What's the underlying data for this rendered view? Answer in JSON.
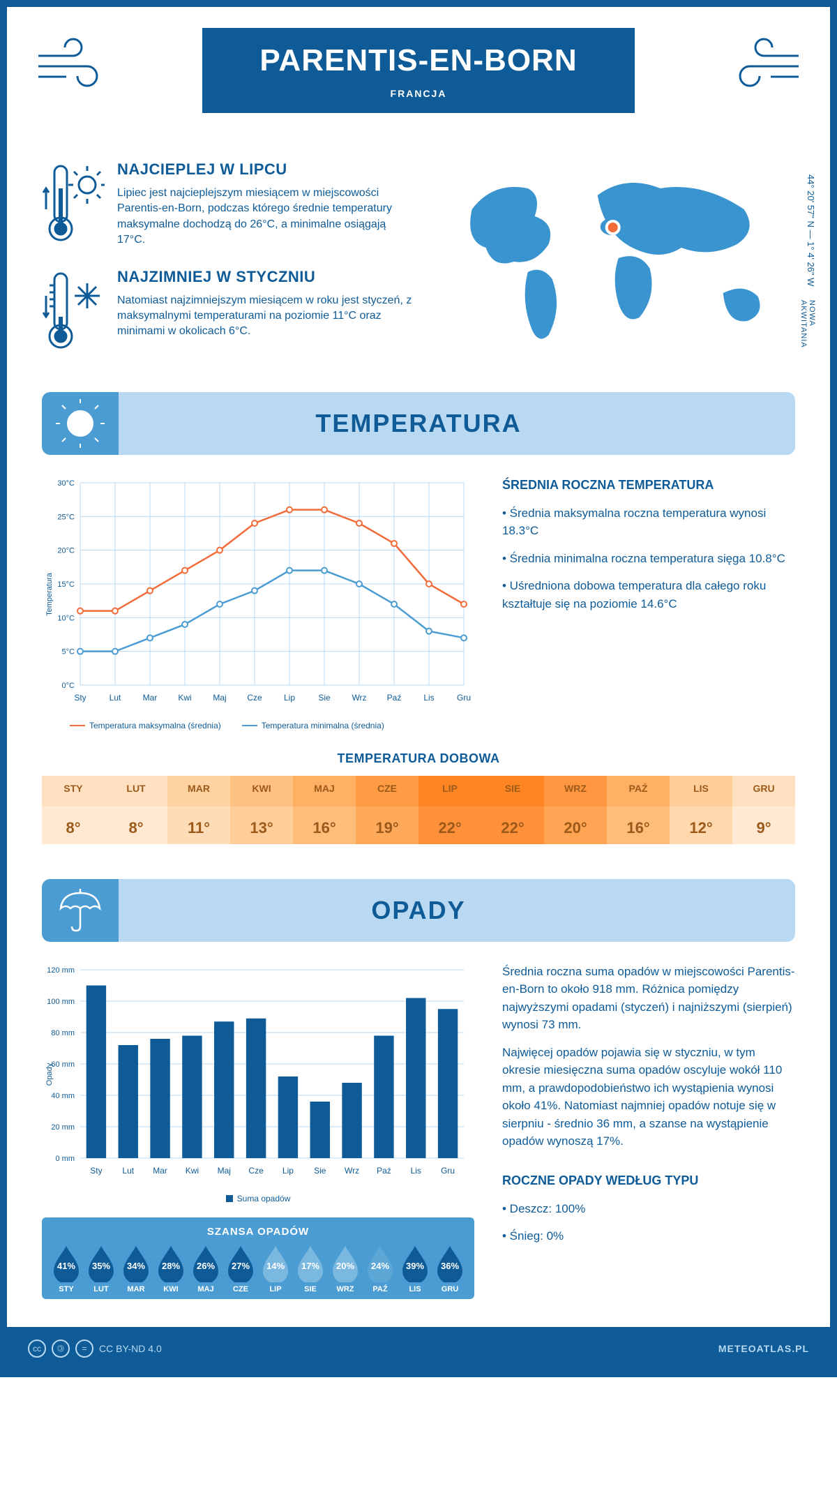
{
  "header": {
    "city": "PARENTIS-EN-BORN",
    "country": "FRANCJA",
    "coords": "44° 20' 57\" N — 1° 4' 26\" W",
    "region": "NOWA AKWITANIA"
  },
  "intro": {
    "hot": {
      "title": "NAJCIEPLEJ W LIPCU",
      "text": "Lipiec jest najcieplejszym miesiącem w miejscowości Parentis-en-Born, podczas którego średnie temperatury maksymalne dochodzą do 26°C, a minimalne osiągają 17°C."
    },
    "cold": {
      "title": "NAJZIMNIEJ W STYCZNIU",
      "text": "Natomiast najzimniejszym miesiącem w roku jest styczeń, z maksymalnymi temperaturami na poziomie 11°C oraz minimami w okolicach 6°C."
    }
  },
  "months": [
    "Sty",
    "Lut",
    "Mar",
    "Kwi",
    "Maj",
    "Cze",
    "Lip",
    "Sie",
    "Wrz",
    "Paź",
    "Lis",
    "Gru"
  ],
  "months_upper": [
    "STY",
    "LUT",
    "MAR",
    "KWI",
    "MAJ",
    "CZE",
    "LIP",
    "SIE",
    "WRZ",
    "PAŹ",
    "LIS",
    "GRU"
  ],
  "temperature": {
    "banner": "TEMPERATURA",
    "chart": {
      "type": "line",
      "ylabel": "Temperatura",
      "ylim": [
        0,
        30
      ],
      "ytick_step": 5,
      "grid_color": "#b8d9f1",
      "label_fontsize": 11,
      "series": [
        {
          "name": "Temperatura maksymalna (średnia)",
          "color": "#f26b3a",
          "values": [
            11,
            11,
            14,
            17,
            20,
            24,
            26,
            26,
            24,
            21,
            15,
            12
          ]
        },
        {
          "name": "Temperatura minimalna (średnia)",
          "color": "#4b9cd3",
          "values": [
            5,
            5,
            7,
            9,
            12,
            14,
            17,
            17,
            15,
            12,
            8,
            7
          ]
        }
      ]
    },
    "side": {
      "title": "ŚREDNIA ROCZNA TEMPERATURA",
      "b1": "• Średnia maksymalna roczna temperatura wynosi 18.3°C",
      "b2": "• Średnia minimalna roczna temperatura sięga 10.8°C",
      "b3": "• Uśredniona dobowa temperatura dla całego roku kształtuje się na poziomie 14.6°C"
    },
    "daily": {
      "title": "TEMPERATURA DOBOWA",
      "values": [
        "8°",
        "8°",
        "11°",
        "13°",
        "16°",
        "19°",
        "22°",
        "22°",
        "20°",
        "16°",
        "12°",
        "9°"
      ],
      "header_colors": [
        "#ffe1c1",
        "#ffe1c1",
        "#ffd2a1",
        "#ffc182",
        "#ffb062",
        "#ff9b42",
        "#ff8522",
        "#ff8522",
        "#ff9742",
        "#ffb062",
        "#ffcd9a",
        "#ffe1c1"
      ],
      "value_colors": [
        "#ffe9d2",
        "#ffe9d2",
        "#ffdcb8",
        "#ffcd9a",
        "#ffbd7c",
        "#ffa95a",
        "#ff913a",
        "#ff913a",
        "#ffa452",
        "#ffbd7c",
        "#ffd8ae",
        "#ffe9d2"
      ],
      "text_color": "#9b5a1a"
    }
  },
  "opady": {
    "banner": "OPADY",
    "chart": {
      "type": "bar",
      "ylabel": "Opady",
      "ylim": [
        0,
        120
      ],
      "ytick_step": 20,
      "bar_color": "#0e5b97",
      "grid_color": "#b8d9f1",
      "legend": "Suma opadów",
      "values": [
        110,
        72,
        76,
        78,
        87,
        89,
        52,
        36,
        48,
        78,
        102,
        95
      ]
    },
    "side": {
      "p1": "Średnia roczna suma opadów w miejscowości Parentis-en-Born to około 918 mm. Różnica pomiędzy najwyższymi opadami (styczeń) i najniższymi (sierpień) wynosi 73 mm.",
      "p2": "Najwięcej opadów pojawia się w styczniu, w tym okresie miesięczna suma opadów oscyluje wokół 110 mm, a prawdopodobieństwo ich wystąpienia wynosi około 41%. Natomiast najmniej opadów notuje się w sierpniu - średnio 36 mm, a szanse na wystąpienie opadów wynoszą 17%.",
      "type_title": "ROCZNE OPADY WEDŁUG TYPU",
      "t1": "• Deszcz: 100%",
      "t2": "• Śnieg: 0%"
    },
    "chance": {
      "title": "SZANSA OPADÓW",
      "values": [
        "41%",
        "35%",
        "34%",
        "28%",
        "26%",
        "27%",
        "14%",
        "17%",
        "20%",
        "24%",
        "39%",
        "36%"
      ],
      "colors": [
        "#0e5b97",
        "#0e5b97",
        "#0e5b97",
        "#0e5b97",
        "#0e5b97",
        "#0e5b97",
        "#7bb8e0",
        "#7bb8e0",
        "#7bb8e0",
        "#5da7d6",
        "#0e5b97",
        "#0e5b97"
      ]
    }
  },
  "footer": {
    "license": "CC BY-ND 4.0",
    "site": "METEOATLAS.PL"
  }
}
